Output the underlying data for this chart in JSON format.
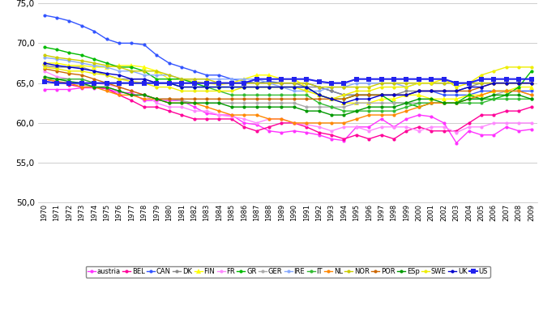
{
  "years": [
    1970,
    1971,
    1972,
    1973,
    1974,
    1975,
    1976,
    1977,
    1978,
    1979,
    1980,
    1981,
    1982,
    1983,
    1984,
    1985,
    1986,
    1987,
    1988,
    1989,
    1990,
    1991,
    1992,
    1993,
    1994,
    1995,
    1996,
    1997,
    1998,
    1999,
    2000,
    2001,
    2002,
    2003,
    2004,
    2005,
    2006,
    2007,
    2008,
    2009
  ],
  "series": {
    "austria": {
      "color": "#FF33FF",
      "marker": "o",
      "ms": 3,
      "lw": 1.0,
      "values": [
        64.2,
        64.2,
        64.2,
        64.4,
        64.4,
        64.3,
        63.8,
        63.8,
        62.8,
        62.8,
        62.8,
        62.8,
        62.0,
        61.2,
        61.0,
        61.0,
        60.0,
        59.8,
        59.0,
        58.8,
        59.0,
        58.8,
        58.5,
        58.0,
        57.8,
        59.5,
        59.5,
        60.5,
        59.5,
        60.5,
        61.0,
        60.8,
        60.0,
        57.5,
        59.0,
        58.5,
        58.5,
        59.5,
        59.0,
        59.2
      ]
    },
    "BEL": {
      "color": "#FF0099",
      "marker": "o",
      "ms": 3,
      "lw": 1.0,
      "values": [
        65.5,
        65.2,
        64.8,
        64.5,
        64.5,
        64.3,
        63.5,
        62.8,
        62.0,
        62.0,
        61.5,
        61.0,
        60.5,
        60.5,
        60.5,
        60.5,
        59.5,
        59.0,
        59.5,
        60.0,
        60.0,
        59.5,
        58.8,
        58.5,
        58.0,
        58.5,
        58.0,
        58.5,
        58.0,
        59.0,
        59.5,
        59.0,
        59.0,
        59.0,
        60.0,
        61.0,
        61.0,
        61.5,
        61.5,
        62.0
      ]
    },
    "CAN": {
      "color": "#3355FF",
      "marker": "o",
      "ms": 3,
      "lw": 1.0,
      "values": [
        73.5,
        73.2,
        72.8,
        72.2,
        71.5,
        70.5,
        70.0,
        70.0,
        69.8,
        68.5,
        67.5,
        67.0,
        66.5,
        66.0,
        66.0,
        65.5,
        65.2,
        65.0,
        65.2,
        65.0,
        65.0,
        65.0,
        64.5,
        64.0,
        63.5,
        63.5,
        63.5,
        63.5,
        63.5,
        63.5,
        64.0,
        64.0,
        63.5,
        63.5,
        63.5,
        64.0,
        64.0,
        64.0,
        64.0,
        64.0
      ]
    },
    "DK": {
      "color": "#888888",
      "marker": "o",
      "ms": 3,
      "lw": 1.0,
      "values": [
        67.2,
        67.0,
        67.0,
        67.0,
        66.5,
        66.0,
        65.5,
        65.5,
        65.5,
        65.0,
        65.0,
        65.0,
        65.0,
        65.0,
        65.0,
        65.0,
        65.0,
        65.0,
        65.0,
        65.0,
        65.0,
        64.5,
        64.5,
        64.0,
        63.5,
        63.5,
        63.5,
        63.5,
        63.5,
        64.0,
        64.0,
        64.0,
        64.0,
        64.0,
        64.5,
        65.0,
        65.0,
        65.0,
        65.0,
        65.0
      ]
    },
    "FIN": {
      "color": "#FFFF00",
      "marker": "^",
      "ms": 4,
      "lw": 1.0,
      "values": [
        67.5,
        67.5,
        67.2,
        67.2,
        67.0,
        67.0,
        67.2,
        67.2,
        67.0,
        66.5,
        65.5,
        65.5,
        65.2,
        65.0,
        64.8,
        65.0,
        65.5,
        66.0,
        66.0,
        65.5,
        65.5,
        64.5,
        63.5,
        63.0,
        62.5,
        62.5,
        62.5,
        63.0,
        63.0,
        63.5,
        63.5,
        63.0,
        63.0,
        63.0,
        63.5,
        63.5,
        64.0,
        64.0,
        64.5,
        64.5
      ]
    },
    "FR": {
      "color": "#FF88FF",
      "marker": "o",
      "ms": 3,
      "lw": 1.0,
      "values": [
        66.5,
        65.8,
        65.5,
        65.5,
        65.0,
        64.8,
        64.5,
        64.0,
        63.5,
        62.5,
        62.0,
        62.0,
        61.5,
        61.5,
        61.0,
        60.8,
        60.5,
        60.0,
        60.5,
        60.5,
        60.0,
        59.8,
        59.5,
        59.0,
        59.5,
        59.5,
        59.0,
        59.5,
        59.5,
        59.5,
        59.0,
        59.5,
        59.5,
        58.8,
        59.5,
        59.5,
        60.0,
        60.0,
        60.0,
        60.0
      ]
    },
    "GR": {
      "color": "#00BB00",
      "marker": "o",
      "ms": 3,
      "lw": 1.0,
      "values": [
        69.5,
        69.2,
        68.8,
        68.5,
        68.0,
        67.5,
        67.0,
        67.0,
        66.5,
        65.5,
        65.5,
        65.5,
        65.0,
        64.5,
        64.5,
        64.5,
        64.5,
        64.5,
        64.5,
        64.5,
        64.5,
        64.5,
        63.5,
        63.0,
        63.0,
        63.5,
        63.5,
        63.5,
        62.5,
        62.5,
        62.0,
        62.5,
        62.5,
        62.5,
        63.5,
        63.0,
        63.0,
        63.5,
        64.5,
        66.5
      ]
    },
    "GER": {
      "color": "#AAAAAA",
      "marker": "o",
      "ms": 3,
      "lw": 1.0,
      "values": [
        65.2,
        65.0,
        65.0,
        64.8,
        64.5,
        64.5,
        64.0,
        63.5,
        63.5,
        63.0,
        63.0,
        62.8,
        62.5,
        62.5,
        62.5,
        62.5,
        62.5,
        62.5,
        62.5,
        62.5,
        62.5,
        62.0,
        62.0,
        62.0,
        62.0,
        62.5,
        62.5,
        62.5,
        62.5,
        62.5,
        62.5,
        62.5,
        62.5,
        62.5,
        63.0,
        63.0,
        63.5,
        64.0,
        64.0,
        63.5
      ]
    },
    "IRE": {
      "color": "#88AAFF",
      "marker": "o",
      "ms": 3,
      "lw": 1.0,
      "values": [
        68.2,
        68.0,
        67.8,
        67.5,
        67.2,
        67.0,
        66.5,
        66.5,
        66.0,
        66.0,
        66.0,
        65.5,
        65.5,
        65.5,
        65.5,
        65.5,
        65.5,
        65.5,
        65.0,
        64.5,
        64.0,
        64.0,
        64.0,
        64.5,
        64.5,
        65.0,
        65.0,
        65.0,
        65.0,
        64.5,
        65.0,
        65.0,
        65.0,
        65.0,
        65.0,
        65.0,
        65.0,
        65.0,
        65.0,
        65.0
      ]
    },
    "IT": {
      "color": "#33BB33",
      "marker": "o",
      "ms": 3,
      "lw": 1.0,
      "values": [
        65.5,
        65.5,
        65.5,
        65.5,
        65.0,
        65.0,
        65.0,
        65.0,
        65.0,
        65.0,
        65.0,
        64.5,
        64.5,
        64.5,
        64.0,
        63.5,
        63.5,
        63.5,
        63.5,
        63.5,
        63.5,
        63.5,
        62.5,
        62.0,
        61.5,
        61.5,
        61.5,
        61.5,
        61.5,
        62.0,
        62.5,
        62.5,
        62.5,
        62.5,
        62.5,
        62.5,
        63.0,
        63.0,
        63.0,
        63.0
      ]
    },
    "NL": {
      "color": "#FF8800",
      "marker": "o",
      "ms": 3,
      "lw": 1.0,
      "values": [
        65.5,
        65.2,
        65.0,
        64.5,
        64.5,
        64.0,
        63.5,
        63.5,
        63.0,
        63.0,
        62.5,
        62.5,
        62.5,
        62.0,
        61.5,
        61.0,
        61.0,
        61.0,
        60.5,
        60.5,
        60.0,
        60.0,
        60.0,
        60.0,
        60.0,
        60.5,
        61.0,
        61.0,
        61.0,
        61.5,
        62.0,
        62.5,
        62.5,
        62.5,
        63.0,
        63.5,
        64.0,
        64.0,
        64.0,
        63.5
      ]
    },
    "NOR": {
      "color": "#CCCC00",
      "marker": "o",
      "ms": 3,
      "lw": 1.0,
      "values": [
        68.5,
        68.2,
        68.0,
        67.8,
        67.5,
        67.2,
        67.0,
        66.5,
        66.5,
        66.5,
        66.0,
        65.5,
        65.5,
        65.5,
        65.0,
        65.0,
        65.0,
        65.0,
        65.0,
        65.0,
        65.0,
        65.0,
        64.5,
        64.5,
        64.5,
        64.5,
        64.5,
        65.0,
        65.0,
        65.0,
        65.0,
        65.0,
        65.0,
        65.0,
        65.0,
        65.0,
        65.0,
        65.0,
        65.0,
        65.0
      ]
    },
    "POR": {
      "color": "#CC6600",
      "marker": "o",
      "ms": 3,
      "lw": 1.0,
      "values": [
        66.8,
        66.5,
        66.2,
        66.0,
        65.5,
        65.0,
        64.5,
        64.0,
        63.5,
        63.0,
        63.0,
        63.0,
        63.0,
        63.0,
        63.0,
        63.0,
        63.0,
        63.0,
        63.0,
        63.0,
        63.0,
        63.0,
        63.0,
        63.0,
        63.0,
        63.5,
        63.5,
        63.5,
        63.5,
        63.5,
        64.0,
        64.0,
        64.0,
        64.0,
        64.0,
        64.5,
        65.0,
        65.0,
        65.0,
        65.0
      ]
    },
    "ESp": {
      "color": "#009900",
      "marker": "o",
      "ms": 3,
      "lw": 1.0,
      "values": [
        65.8,
        65.5,
        65.2,
        65.0,
        64.5,
        64.5,
        64.0,
        63.5,
        63.5,
        63.0,
        62.5,
        62.5,
        62.5,
        62.5,
        62.5,
        62.0,
        62.0,
        62.0,
        62.0,
        62.0,
        62.0,
        61.5,
        61.5,
        61.0,
        61.0,
        61.5,
        62.0,
        62.0,
        62.0,
        62.5,
        63.0,
        63.0,
        62.5,
        62.5,
        63.0,
        63.0,
        63.5,
        63.5,
        63.5,
        63.0
      ]
    },
    "SWE": {
      "color": "#EEEE00",
      "marker": "o",
      "ms": 3,
      "lw": 1.0,
      "values": [
        67.0,
        66.8,
        66.5,
        66.5,
        66.2,
        66.0,
        65.5,
        65.2,
        65.0,
        64.5,
        64.5,
        64.0,
        64.0,
        64.0,
        64.0,
        64.0,
        64.5,
        64.5,
        64.5,
        64.5,
        64.5,
        64.0,
        63.5,
        63.0,
        63.5,
        64.0,
        64.0,
        64.5,
        64.5,
        64.5,
        65.0,
        65.0,
        65.5,
        64.5,
        65.0,
        66.0,
        66.5,
        67.0,
        67.0,
        67.0
      ]
    },
    "UK": {
      "color": "#0000CC",
      "marker": "o",
      "ms": 3,
      "lw": 1.0,
      "values": [
        67.5,
        67.2,
        67.0,
        66.8,
        66.5,
        66.2,
        66.0,
        65.5,
        65.5,
        65.0,
        65.0,
        64.5,
        64.5,
        64.5,
        64.5,
        64.5,
        64.5,
        64.5,
        64.5,
        64.5,
        64.5,
        64.5,
        63.5,
        63.0,
        62.5,
        63.0,
        63.0,
        63.5,
        63.5,
        63.5,
        64.0,
        64.0,
        64.0,
        64.0,
        64.5,
        64.5,
        65.0,
        65.0,
        65.0,
        65.0
      ]
    },
    "US": {
      "color": "#2222EE",
      "marker": "s",
      "ms": 4,
      "lw": 1.5,
      "values": [
        65.2,
        65.0,
        65.0,
        65.0,
        65.0,
        65.0,
        65.0,
        65.0,
        65.0,
        65.0,
        65.0,
        65.0,
        65.0,
        65.0,
        65.0,
        65.0,
        65.0,
        65.5,
        65.5,
        65.5,
        65.5,
        65.5,
        65.2,
        65.0,
        65.0,
        65.5,
        65.5,
        65.5,
        65.5,
        65.5,
        65.5,
        65.5,
        65.5,
        65.0,
        65.0,
        65.5,
        65.5,
        65.5,
        65.5,
        65.5
      ]
    }
  },
  "ylim": [
    50.0,
    75.0
  ],
  "yticks": [
    50.0,
    55.0,
    60.0,
    65.0,
    70.0,
    75.0
  ],
  "background_color": "#FFFFFF",
  "grid_color": "#BBBBBB"
}
